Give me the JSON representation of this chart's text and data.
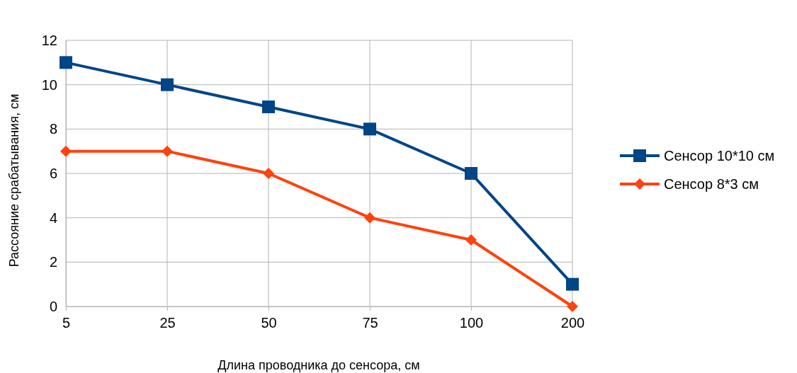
{
  "chart_data": {
    "type": "line",
    "xlabel": "Длина проводника до сенсора, см",
    "ylabel": "Рассояние срабатывания, см",
    "categories": [
      "5",
      "25",
      "50",
      "75",
      "100",
      "200"
    ],
    "series": [
      {
        "name": "Сенсор 10*10 см",
        "color": "#004586",
        "marker": "square",
        "values": [
          11,
          10,
          9,
          8,
          6,
          1
        ]
      },
      {
        "name": "Сенсор 8*3 см",
        "color": "#ff420e",
        "marker": "diamond",
        "values": [
          7,
          7,
          6,
          4,
          3,
          0
        ]
      }
    ],
    "ylim": [
      0,
      12
    ],
    "yticks": [
      0,
      2,
      4,
      6,
      8,
      10,
      12
    ],
    "grid": true,
    "legend": "right"
  }
}
